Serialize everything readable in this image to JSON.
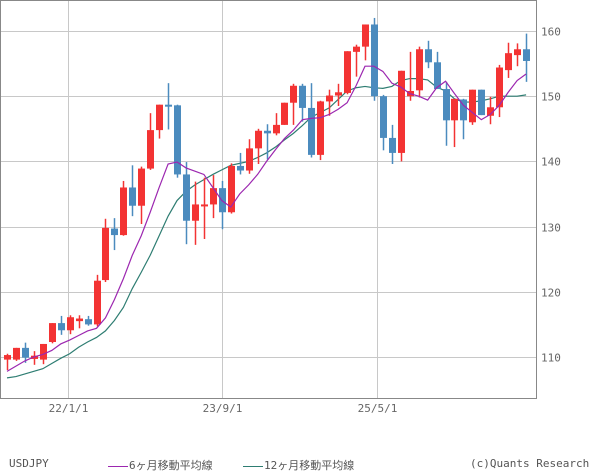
{
  "colors": {
    "up": "#f33333",
    "down": "#4b8bbe",
    "ma6": "#9c27b0",
    "ma12": "#2e7d72",
    "grid": "#c8c8c8",
    "frame": "#888888"
  },
  "legend": {
    "symbol": "USDJPY",
    "ma6_label": "6ヶ月移動平均線",
    "ma12_label": "12ヶ月移動平均線",
    "credit": "(c)Quants Research"
  },
  "chart_data": {
    "type": "candlestick",
    "title": "USDJPY",
    "interval": "monthly",
    "xlabel": "",
    "ylabel": "",
    "ylim": [
      104.2,
      165.0
    ],
    "y_ticks": [
      110,
      120,
      130,
      140,
      150,
      160
    ],
    "x_ticks": [
      {
        "label": "22/1/1",
        "index": 6.8
      },
      {
        "label": "23/9/1",
        "index": 24.0
      },
      {
        "label": "25/5/1",
        "index": 41.3
      }
    ],
    "grid": true,
    "legend_position": "bottom",
    "candles": [
      {
        "o": 109.6,
        "h": 110.5,
        "l": 108.0,
        "c": 110.3
      },
      {
        "o": 109.6,
        "h": 111.4,
        "l": 109.4,
        "c": 111.4
      },
      {
        "o": 111.4,
        "h": 112.2,
        "l": 109.1,
        "c": 109.9
      },
      {
        "o": 109.7,
        "h": 110.9,
        "l": 108.8,
        "c": 110.2
      },
      {
        "o": 109.6,
        "h": 112.0,
        "l": 108.9,
        "c": 112.0
      },
      {
        "o": 112.3,
        "h": 115.2,
        "l": 112.1,
        "c": 115.2
      },
      {
        "o": 115.2,
        "h": 116.3,
        "l": 113.4,
        "c": 114.1
      },
      {
        "o": 114.1,
        "h": 116.4,
        "l": 113.5,
        "c": 116.1
      },
      {
        "o": 115.5,
        "h": 116.4,
        "l": 114.4,
        "c": 115.9
      },
      {
        "o": 115.8,
        "h": 116.3,
        "l": 114.8,
        "c": 115.0
      },
      {
        "o": 115.0,
        "h": 122.6,
        "l": 114.7,
        "c": 121.7
      },
      {
        "o": 121.8,
        "h": 131.2,
        "l": 121.5,
        "c": 129.8
      },
      {
        "o": 129.7,
        "h": 131.3,
        "l": 126.4,
        "c": 128.7
      },
      {
        "o": 128.7,
        "h": 137.0,
        "l": 128.6,
        "c": 136.0
      },
      {
        "o": 136.0,
        "h": 139.4,
        "l": 131.6,
        "c": 133.2
      },
      {
        "o": 133.2,
        "h": 139.2,
        "l": 130.4,
        "c": 138.9
      },
      {
        "o": 138.9,
        "h": 147.4,
        "l": 138.7,
        "c": 144.8
      },
      {
        "o": 144.8,
        "h": 148.7,
        "l": 143.5,
        "c": 148.7
      },
      {
        "o": 148.7,
        "h": 152.0,
        "l": 144.9,
        "c": 148.6
      },
      {
        "o": 148.6,
        "h": 148.7,
        "l": 137.5,
        "c": 138.0
      },
      {
        "o": 138.0,
        "h": 139.9,
        "l": 127.3,
        "c": 130.9
      },
      {
        "o": 130.9,
        "h": 136.9,
        "l": 127.2,
        "c": 133.4
      },
      {
        "o": 133.4,
        "h": 137.5,
        "l": 128.1,
        "c": 133.4
      },
      {
        "o": 133.4,
        "h": 137.9,
        "l": 131.3,
        "c": 135.9
      },
      {
        "o": 135.9,
        "h": 137.0,
        "l": 129.6,
        "c": 132.2
      },
      {
        "o": 132.2,
        "h": 139.7,
        "l": 132.0,
        "c": 139.3
      },
      {
        "o": 139.3,
        "h": 141.3,
        "l": 138.0,
        "c": 138.6
      },
      {
        "o": 138.6,
        "h": 143.4,
        "l": 138.1,
        "c": 142.0
      },
      {
        "o": 142.0,
        "h": 145.0,
        "l": 139.6,
        "c": 144.7
      },
      {
        "o": 144.7,
        "h": 145.7,
        "l": 140.3,
        "c": 144.3
      },
      {
        "o": 144.3,
        "h": 147.4,
        "l": 144.0,
        "c": 145.6
      },
      {
        "o": 145.6,
        "h": 148.0,
        "l": 145.6,
        "c": 149.0
      },
      {
        "o": 149.0,
        "h": 151.9,
        "l": 145.6,
        "c": 151.6
      },
      {
        "o": 151.6,
        "h": 151.9,
        "l": 146.1,
        "c": 148.2
      },
      {
        "o": 148.2,
        "h": 152.0,
        "l": 140.6,
        "c": 141.0
      },
      {
        "o": 141.0,
        "h": 149.3,
        "l": 140.2,
        "c": 149.2
      },
      {
        "o": 149.2,
        "h": 151.0,
        "l": 147.0,
        "c": 150.1
      },
      {
        "o": 150.1,
        "h": 151.9,
        "l": 148.5,
        "c": 150.6
      },
      {
        "o": 150.5,
        "h": 155.2,
        "l": 150.3,
        "c": 156.9
      },
      {
        "o": 156.8,
        "h": 157.9,
        "l": 153.0,
        "c": 157.6
      },
      {
        "o": 157.6,
        "h": 161.0,
        "l": 155.5,
        "c": 161.0
      },
      {
        "o": 161.0,
        "h": 162.0,
        "l": 149.3,
        "c": 150.0
      },
      {
        "o": 150.0,
        "h": 150.2,
        "l": 141.7,
        "c": 143.6
      },
      {
        "o": 143.6,
        "h": 145.6,
        "l": 139.6,
        "c": 141.3
      },
      {
        "o": 141.3,
        "h": 152.2,
        "l": 140.0,
        "c": 153.9
      },
      {
        "o": 150.0,
        "h": 156.8,
        "l": 149.3,
        "c": 150.8
      },
      {
        "o": 150.9,
        "h": 157.6,
        "l": 149.8,
        "c": 157.2
      },
      {
        "o": 157.2,
        "h": 158.5,
        "l": 154.3,
        "c": 155.2
      },
      {
        "o": 155.2,
        "h": 156.8,
        "l": 151.3,
        "c": 151.1
      },
      {
        "o": 151.1,
        "h": 152.2,
        "l": 142.4,
        "c": 146.3
      },
      {
        "o": 146.3,
        "h": 147.7,
        "l": 142.2,
        "c": 149.6
      },
      {
        "o": 149.5,
        "h": 149.6,
        "l": 143.4,
        "c": 146.3
      },
      {
        "o": 146.0,
        "h": 151.0,
        "l": 145.6,
        "c": 151.0
      },
      {
        "o": 151.0,
        "h": 151.0,
        "l": 147.4,
        "c": 147.1
      },
      {
        "o": 147.0,
        "h": 149.9,
        "l": 145.7,
        "c": 148.3
      },
      {
        "o": 148.3,
        "h": 154.8,
        "l": 146.8,
        "c": 154.4
      },
      {
        "o": 154.0,
        "h": 158.2,
        "l": 152.8,
        "c": 156.6
      },
      {
        "o": 156.3,
        "h": 158.1,
        "l": 154.6,
        "c": 157.2
      },
      {
        "o": 157.2,
        "h": 159.6,
        "l": 152.2,
        "c": 155.4
      },
      {
        "o": 155.4,
        "h": 158.1,
        "l": 152.2,
        "c": 156.6
      },
      {
        "o": 156.3,
        "h": 160.8,
        "l": 156.0,
        "c": 159.1
      },
      {
        "o": 159.2,
        "h": 160.4,
        "l": 158.3,
        "c": 159.8
      }
    ],
    "ma6": [
      107.8,
      108.6,
      109.4,
      110.0,
      110.4,
      111.0,
      112.0,
      112.6,
      113.3,
      114.0,
      114.4,
      116.0,
      118.8,
      122.0,
      125.6,
      128.6,
      132.2,
      136.0,
      139.6,
      139.9,
      139.0,
      138.5,
      138.0,
      136.0,
      134.0,
      133.0,
      135.0,
      136.4,
      138.0,
      140.0,
      141.8,
      143.5,
      144.8,
      146.4,
      146.6,
      146.7,
      147.2,
      148.0,
      149.0,
      151.6,
      154.6,
      154.6,
      153.8,
      152.0,
      151.4,
      150.4,
      150.0,
      149.4,
      151.3,
      152.3,
      150.4,
      148.6,
      147.5,
      146.4,
      147.2,
      148.6,
      150.6,
      152.4,
      153.4,
      155.0,
      156.5,
      157.3
    ],
    "ma12": [
      106.8,
      107.0,
      107.4,
      107.8,
      108.2,
      109.0,
      109.8,
      110.5,
      111.5,
      112.3,
      113.0,
      114.0,
      115.6,
      117.6,
      120.5,
      123.0,
      125.6,
      128.6,
      131.6,
      134.0,
      135.4,
      136.4,
      137.2,
      138.0,
      138.7,
      139.4,
      139.7,
      140.0,
      140.6,
      141.3,
      142.2,
      143.3,
      144.3,
      145.5,
      146.8,
      147.5,
      148.2,
      149.5,
      150.8,
      151.3,
      151.5,
      151.3,
      151.2,
      151.5,
      152.4,
      152.7,
      152.7,
      152.5,
      151.4,
      150.8,
      149.6,
      149.1,
      149.1,
      149.3,
      149.6,
      150.0,
      150.0,
      150.0,
      150.2,
      150.8,
      151.4,
      152.6
    ],
    "ylim_note": "frame spans pixel y 0..399; y=31 -> 160, y=357 -> 110"
  }
}
